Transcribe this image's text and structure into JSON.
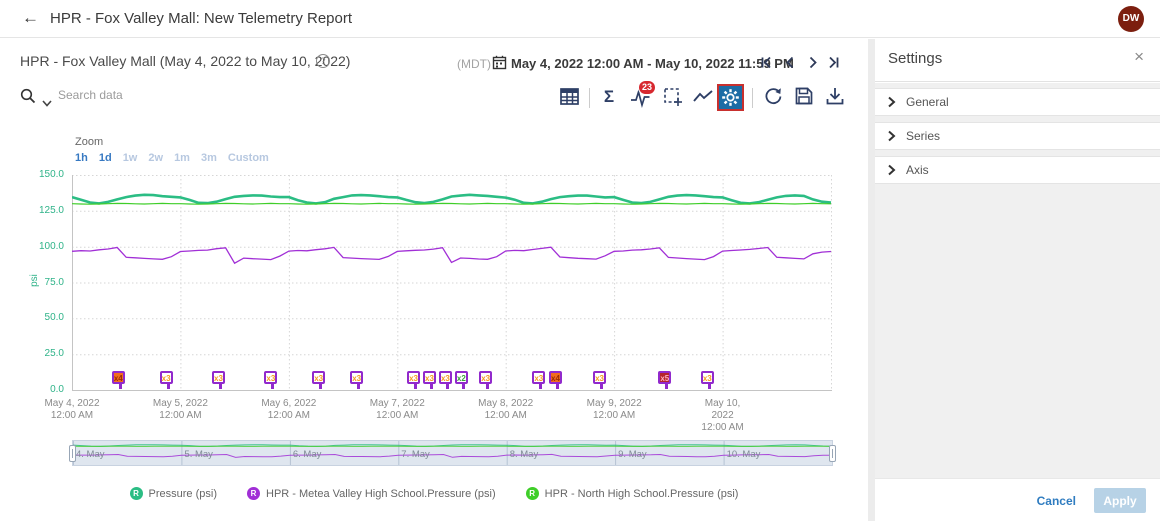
{
  "app_bar": {
    "title": "HPR - Fox Valley Mall: New Telemetry Report",
    "avatar_initials": "DW"
  },
  "report_header": {
    "title": "HPR - Fox Valley Mall (May 4, 2022 to May 10, 2022)",
    "info_glyph": "?",
    "timezone": "(MDT)",
    "date_range": "May 4, 2022 12:00 AM - May 10, 2022 11:59 PM"
  },
  "search": {
    "placeholder": "Search data"
  },
  "toolbar": {
    "alarm_badge_count": "23",
    "sigma_glyph": "Σ"
  },
  "zoom_controls": {
    "label": "Zoom",
    "options": [
      {
        "label": "1h",
        "active": true
      },
      {
        "label": "1d",
        "active": true
      },
      {
        "label": "1w",
        "active": false
      },
      {
        "label": "2w",
        "active": false
      },
      {
        "label": "1m",
        "active": false
      },
      {
        "label": "3m",
        "active": false
      },
      {
        "label": "Custom",
        "active": false
      }
    ]
  },
  "chart_data": {
    "type": "line",
    "ylabel": "psi",
    "ylim": [
      0,
      150
    ],
    "yticks": [
      150,
      125,
      100,
      75,
      50,
      25,
      0
    ],
    "days": 7,
    "grid": true,
    "legend_position": "bottom",
    "legend_marker_letter": "R",
    "x_labels": [
      [
        "May 4, 2022",
        "12:00 AM"
      ],
      [
        "May 5, 2022",
        "12:00 AM"
      ],
      [
        "May 6, 2022",
        "12:00 AM"
      ],
      [
        "May 7, 2022",
        "12:00 AM"
      ],
      [
        "May 8, 2022",
        "12:00 AM"
      ],
      [
        "May 9, 2022",
        "12:00 AM"
      ],
      [
        "May 10,",
        "2022",
        "12:00 AM"
      ]
    ],
    "series": [
      {
        "name": "Pressure (psi)",
        "color": "#2bbd84",
        "width": 2.6,
        "values": [
          134.6,
          132.8,
          130.8,
          130.2,
          131.2,
          133.0,
          134.6,
          135.6,
          136.2,
          136.0,
          135.2,
          134.8,
          134.4,
          132.6,
          130.6,
          130.4,
          131.4,
          133.2,
          134.8,
          135.4,
          135.8,
          135.6,
          135.0,
          134.6,
          134.6,
          132.4,
          130.8,
          130.2,
          131.0,
          133.4,
          134.6,
          135.8,
          136.0,
          135.8,
          135.2,
          134.6,
          134.4,
          132.6,
          131.0,
          130.4,
          131.2,
          133.0,
          135.0,
          135.6,
          136.2,
          135.8,
          135.4,
          134.8,
          134.2,
          132.8,
          130.6,
          130.2,
          131.4,
          133.2,
          134.6,
          135.2,
          135.6,
          135.6,
          135.0,
          134.4,
          134.6,
          132.6,
          130.8,
          130.4,
          131.2,
          133.0,
          134.8,
          135.6,
          136.0,
          135.8,
          135.2,
          134.6,
          134.4,
          132.4,
          130.6,
          130.2,
          131.0,
          132.8,
          134.4,
          135.4,
          135.8,
          135.4,
          133.0,
          131.4,
          130.8
        ]
      },
      {
        "name": "HPR - Metea Valley High School.Pressure (psi)",
        "color": "#a12fd6",
        "width": 1.3,
        "values": [
          96.8,
          97.2,
          97.0,
          97.8,
          98.4,
          99.4,
          92.6,
          92.2,
          91.8,
          91.5,
          91.2,
          93.0,
          96.6,
          97.0,
          97.4,
          97.6,
          98.6,
          99.2,
          88.5,
          92.0,
          91.6,
          91.3,
          91.0,
          93.4,
          96.9,
          97.3,
          97.1,
          97.9,
          98.5,
          99.5,
          92.4,
          92.0,
          91.7,
          91.4,
          91.1,
          93.2,
          96.7,
          97.1,
          97.5,
          97.7,
          98.3,
          99.3,
          89.0,
          92.1,
          91.8,
          91.4,
          91.2,
          93.0,
          97.0,
          97.4,
          97.2,
          98.0,
          98.8,
          99.6,
          92.8,
          92.3,
          91.9,
          91.6,
          91.3,
          93.6,
          96.8,
          97.0,
          97.6,
          97.8,
          98.4,
          99.2,
          92.5,
          92.1,
          91.7,
          91.3,
          91.0,
          93.1,
          96.9,
          97.3,
          97.7,
          98.1,
          98.7,
          99.4,
          92.6,
          92.2,
          91.8,
          91.5,
          95.0,
          96.2,
          96.6
        ]
      },
      {
        "name": "HPR - North High School.Pressure (psi)",
        "color": "#3fce29",
        "width": 1.2,
        "values": [
          130.0,
          129.8,
          129.6,
          129.8,
          130.0,
          130.2,
          130.1,
          129.9,
          129.8,
          130.0,
          130.2,
          130.0,
          130.0,
          129.8,
          129.6,
          129.8,
          130.0,
          130.2,
          130.1,
          129.9,
          129.8,
          130.0,
          130.2,
          130.0,
          130.0,
          129.8,
          129.6,
          129.8,
          130.0,
          130.2,
          130.1,
          129.9,
          129.8,
          130.0,
          130.2,
          130.0,
          130.0,
          129.8,
          129.6,
          129.8,
          130.0,
          130.2,
          130.1,
          129.9,
          129.8,
          130.0,
          130.2,
          130.0,
          130.0,
          129.8,
          129.6,
          129.8,
          130.0,
          130.2,
          130.1,
          129.9,
          129.8,
          130.0,
          130.2,
          130.0,
          130.0,
          129.8,
          129.6,
          129.8,
          130.0,
          130.2,
          130.1,
          129.9,
          129.8,
          130.0,
          130.2,
          130.0,
          130.0,
          129.8,
          129.6,
          129.8,
          130.0,
          130.2,
          130.1,
          129.9,
          129.8,
          130.0,
          130.2,
          130.0,
          129.9
        ]
      }
    ]
  },
  "alarm_markers": [
    {
      "label": "x4",
      "severity": "high",
      "pos": 0.063
    },
    {
      "label": "x3",
      "severity": "warn",
      "pos": 0.126
    },
    {
      "label": "x3",
      "severity": "warn",
      "pos": 0.195
    },
    {
      "label": "x3",
      "severity": "warn",
      "pos": 0.264
    },
    {
      "label": "x3",
      "severity": "warn",
      "pos": 0.327
    },
    {
      "label": "x3",
      "severity": "warn",
      "pos": 0.377
    },
    {
      "label": "x3",
      "severity": "warn",
      "pos": 0.452
    },
    {
      "label": "x3",
      "severity": "warn",
      "pos": 0.473
    },
    {
      "label": "x3",
      "severity": "warn",
      "pos": 0.494
    },
    {
      "label": "x2",
      "severity": "ok",
      "pos": 0.515
    },
    {
      "label": "x3",
      "severity": "warn",
      "pos": 0.547
    },
    {
      "label": "x3",
      "severity": "warn",
      "pos": 0.617
    },
    {
      "label": "x4",
      "severity": "high",
      "pos": 0.639
    },
    {
      "label": "x3",
      "severity": "warn",
      "pos": 0.697
    },
    {
      "label": "x5",
      "severity": "critical",
      "pos": 0.783
    },
    {
      "label": "x3",
      "severity": "warn",
      "pos": 0.839
    }
  ],
  "navigator": {
    "labels": [
      "4. May",
      "5. May",
      "6. May",
      "7. May",
      "8. May",
      "9. May",
      "10. May"
    ]
  },
  "settings_panel": {
    "title": "Settings",
    "close_glyph": "×",
    "sections": [
      "General",
      "Series",
      "Axis"
    ],
    "cancel_label": "Cancel",
    "apply_label": "Apply"
  }
}
